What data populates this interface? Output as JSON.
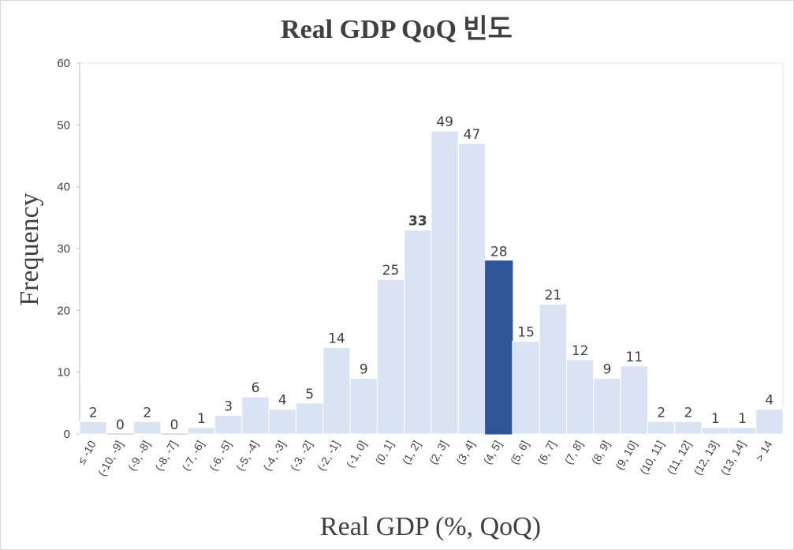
{
  "chart_data": {
    "type": "bar",
    "title": "Real GDP QoQ 빈도",
    "xlabel": "Real GDP (%, QoQ)",
    "ylabel": "Frequency",
    "ylim": [
      0,
      60
    ],
    "yticks": [
      0,
      10,
      20,
      30,
      40,
      50,
      60
    ],
    "grid": false,
    "categories": [
      "≤ -10",
      "(-10, -9]",
      "(-9, -8]",
      "(-8, -7]",
      "(-7, -6]",
      "(-6, -5]",
      "(-5, -4]",
      "(-4, -3]",
      "(-3, -2]",
      "(-2, -1]",
      "(-1, 0]",
      "(0, 1]",
      "(1, 2]",
      "(2, 3]",
      "(3, 4]",
      "(4, 5]",
      "(5, 6]",
      "(6, 7]",
      "(7, 8]",
      "(8, 9]",
      "(9, 10]",
      "(10, 11]",
      "(11, 12]",
      "(12, 13]",
      "(13, 14]",
      "> 14"
    ],
    "values": [
      2,
      0,
      2,
      0,
      1,
      3,
      6,
      4,
      5,
      14,
      9,
      25,
      33,
      49,
      47,
      28,
      15,
      21,
      12,
      9,
      11,
      2,
      2,
      1,
      1,
      4
    ],
    "highlight_index": 15,
    "bold_label_index": 12,
    "colors": {
      "bar": "#dae3f3",
      "highlight": "#2f5597",
      "bar_edge": "#ffffff",
      "axis": "#bfbfbf",
      "text": "#404040"
    }
  }
}
